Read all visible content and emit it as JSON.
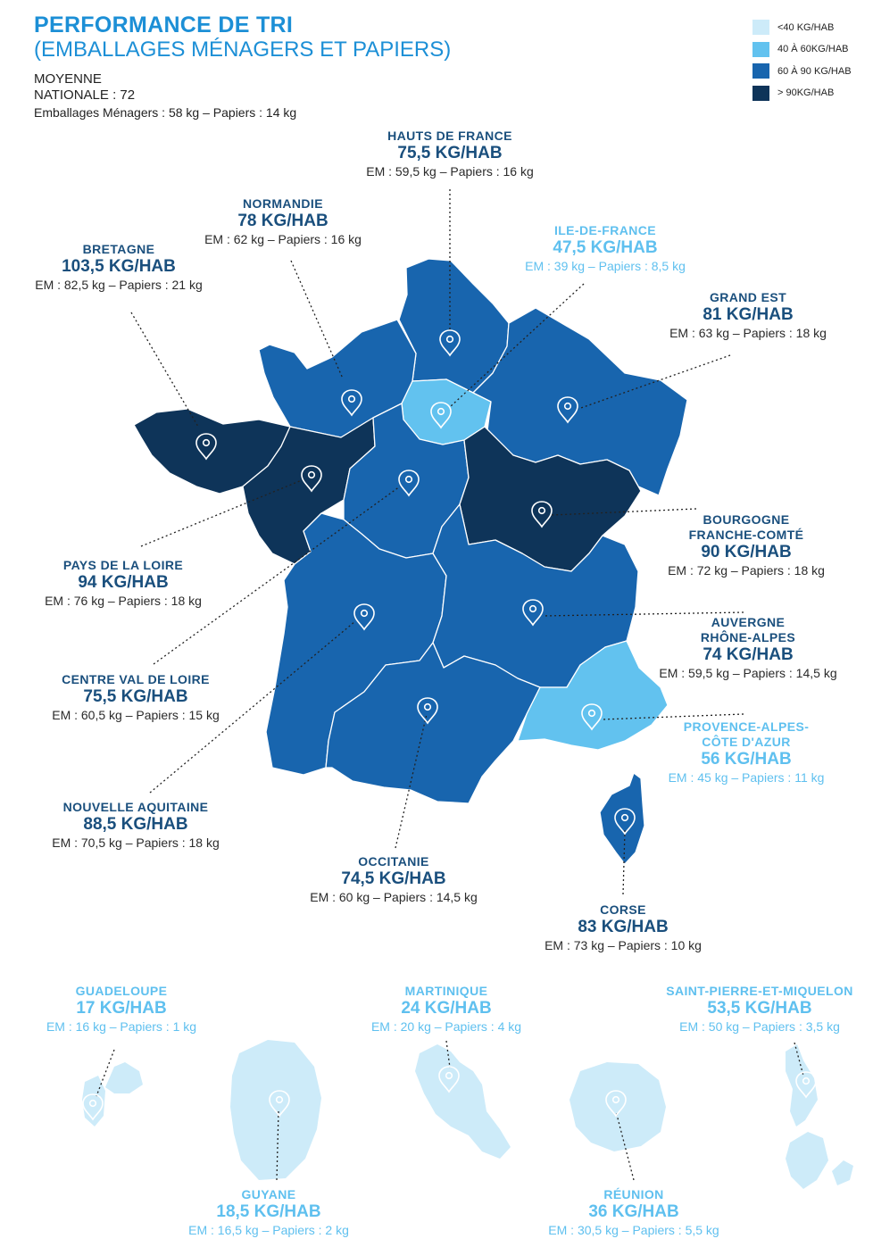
{
  "header": {
    "title": "PERFORMANCE DE TRI",
    "subtitle": "(EMBALLAGES MÉNAGERS ET PAPIERS)",
    "average_label_1": "MOYENNE",
    "average_label_2": "NATIONALE :  72",
    "average_detail": "Emballages Ménagers : 58 kg – Papiers : 14 kg"
  },
  "legend": [
    {
      "label": "<40 KG/HAB",
      "color": "#cdebf9"
    },
    {
      "label": "40 À 60KG/HAB",
      "color": "#62c2ef"
    },
    {
      "label": "60 À 90 KG/HAB",
      "color": "#1865ae"
    },
    {
      "label": "> 90KG/HAB",
      "color": "#0e3459"
    }
  ],
  "regions": [
    {
      "id": "hauts-de-france",
      "name": "HAUTS DE FRANCE",
      "value": "75,5 KG/HAB",
      "detail": "EM : 59,5 kg – Papiers : 16 kg",
      "style": "dark"
    },
    {
      "id": "normandie",
      "name": "NORMANDIE",
      "value": "78 KG/HAB",
      "detail": "EM : 62 kg – Papiers : 16 kg",
      "style": "dark"
    },
    {
      "id": "ile-de-france",
      "name": "ILE-DE-FRANCE",
      "value": "47,5 KG/HAB",
      "detail": "EM : 39 kg – Papiers : 8,5 kg",
      "style": "light"
    },
    {
      "id": "bretagne",
      "name": "BRETAGNE",
      "value": "103,5 KG/HAB",
      "detail": "EM : 82,5 kg – Papiers : 21 kg",
      "style": "dark"
    },
    {
      "id": "grand-est",
      "name": "GRAND EST",
      "value": "81 KG/HAB",
      "detail": "EM : 63 kg – Papiers : 18 kg",
      "style": "dark"
    },
    {
      "id": "bourgogne",
      "name": "BOURGOGNE",
      "name2": "FRANCHE-COMTÉ",
      "value": "90 KG/HAB",
      "detail": "EM : 72 kg – Papiers : 18 kg",
      "style": "dark"
    },
    {
      "id": "pays-de-la-loire",
      "name": "PAYS DE LA LOIRE",
      "value": "94 KG/HAB",
      "detail": "EM : 76 kg – Papiers : 18 kg",
      "style": "dark"
    },
    {
      "id": "auvergne",
      "name": "AUVERGNE",
      "name2": "RHÔNE-ALPES",
      "value": "74 KG/HAB",
      "detail": "EM : 59,5 kg – Papiers : 14,5 kg",
      "style": "dark"
    },
    {
      "id": "centre-val-de-loire",
      "name": "CENTRE VAL DE LOIRE",
      "value": "75,5 KG/HAB",
      "detail": "EM : 60,5 kg – Papiers : 15 kg",
      "style": "dark"
    },
    {
      "id": "paca",
      "name": "PROVENCE-ALPES-",
      "name2": "CÔTE D'AZUR",
      "value": "56 KG/HAB",
      "detail": "EM : 45 kg – Papiers : 11 kg",
      "style": "light"
    },
    {
      "id": "nouvelle-aquitaine",
      "name": "NOUVELLE AQUITAINE",
      "value": "88,5 KG/HAB",
      "detail": "EM : 70,5 kg – Papiers : 18 kg",
      "style": "dark"
    },
    {
      "id": "occitanie",
      "name": "OCCITANIE",
      "value": "74,5 KG/HAB",
      "detail": "EM : 60 kg – Papiers : 14,5 kg",
      "style": "dark"
    },
    {
      "id": "corse",
      "name": "CORSE",
      "value": "83 KG/HAB",
      "detail": "EM : 73 kg – Papiers : 10 kg",
      "style": "dark"
    },
    {
      "id": "guadeloupe",
      "name": "GUADELOUPE",
      "value": "17  KG/HAB",
      "detail": "EM : 16 kg – Papiers : 1 kg",
      "style": "light"
    },
    {
      "id": "martinique",
      "name": "MARTINIQUE",
      "value": "24 KG/HAB",
      "detail": "EM : 20 kg – Papiers : 4 kg",
      "style": "light"
    },
    {
      "id": "saint-pierre-et-miquelon",
      "name": "SAINT-PIERRE-ET-MIQUELON",
      "value": "53,5 KG/HAB",
      "detail": "EM : 50 kg – Papiers : 3,5 kg",
      "style": "light"
    },
    {
      "id": "guyane",
      "name": "GUYANE",
      "value": "18,5 KG/HAB",
      "detail": "EM : 16,5 kg – Papiers : 2 kg",
      "style": "light"
    },
    {
      "id": "reunion",
      "name": "RÉUNION",
      "value": "36 KG/HAB",
      "detail": "EM : 30,5 kg – Papiers : 5,5 kg",
      "style": "light"
    }
  ],
  "colors": {
    "title_blue": "#1c8fd6",
    "label_dark": "#1a4f7d",
    "label_light": "#5fc0ef"
  },
  "icons": {
    "marker": "map-pin-icon"
  }
}
